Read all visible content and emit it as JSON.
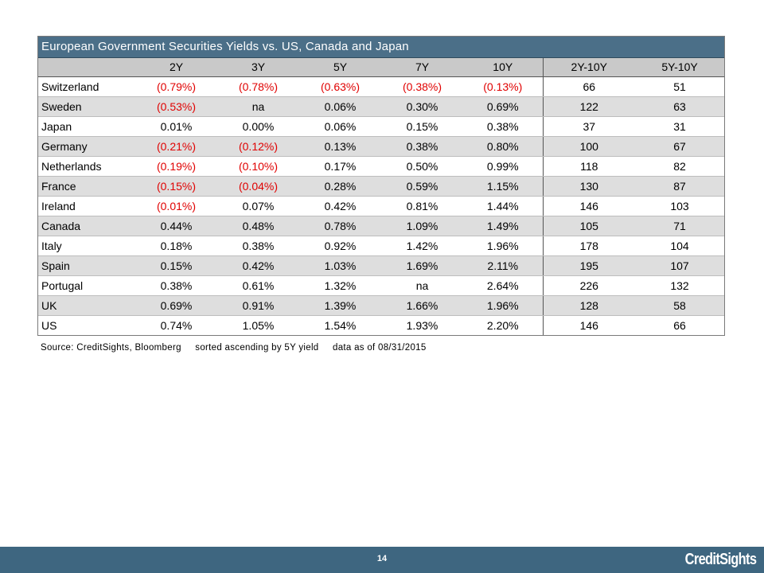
{
  "table": {
    "title": "European Government Securities Yields vs. US, Canada and Japan",
    "columns": [
      "",
      "2Y",
      "3Y",
      "5Y",
      "7Y",
      "10Y",
      "2Y-10Y",
      "5Y-10Y"
    ],
    "rows": [
      {
        "country": "Switzerland",
        "values": [
          "(0.79%)",
          "(0.78%)",
          "(0.63%)",
          "(0.38%)",
          "(0.13%)",
          "66",
          "51"
        ]
      },
      {
        "country": "Sweden",
        "values": [
          "(0.53%)",
          "na",
          "0.06%",
          "0.30%",
          "0.69%",
          "122",
          "63"
        ]
      },
      {
        "country": "Japan",
        "values": [
          "0.01%",
          "0.00%",
          "0.06%",
          "0.15%",
          "0.38%",
          "37",
          "31"
        ]
      },
      {
        "country": "Germany",
        "values": [
          "(0.21%)",
          "(0.12%)",
          "0.13%",
          "0.38%",
          "0.80%",
          "100",
          "67"
        ]
      },
      {
        "country": "Netherlands",
        "values": [
          "(0.19%)",
          "(0.10%)",
          "0.17%",
          "0.50%",
          "0.99%",
          "118",
          "82"
        ]
      },
      {
        "country": "France",
        "values": [
          "(0.15%)",
          "(0.04%)",
          "0.28%",
          "0.59%",
          "1.15%",
          "130",
          "87"
        ]
      },
      {
        "country": "Ireland",
        "values": [
          "(0.01%)",
          "0.07%",
          "0.42%",
          "0.81%",
          "1.44%",
          "146",
          "103"
        ]
      },
      {
        "country": "Canada",
        "values": [
          "0.44%",
          "0.48%",
          "0.78%",
          "1.09%",
          "1.49%",
          "105",
          "71"
        ]
      },
      {
        "country": "Italy",
        "values": [
          "0.18%",
          "0.38%",
          "0.92%",
          "1.42%",
          "1.96%",
          "178",
          "104"
        ]
      },
      {
        "country": "Spain",
        "values": [
          "0.15%",
          "0.42%",
          "1.03%",
          "1.69%",
          "2.11%",
          "195",
          "107"
        ]
      },
      {
        "country": "Portugal",
        "values": [
          "0.38%",
          "0.61%",
          "1.32%",
          "na",
          "2.64%",
          "226",
          "132"
        ]
      },
      {
        "country": "UK",
        "values": [
          "0.69%",
          "0.91%",
          "1.39%",
          "1.66%",
          "1.96%",
          "128",
          "58"
        ]
      },
      {
        "country": "US",
        "values": [
          "0.74%",
          "1.05%",
          "1.54%",
          "1.93%",
          "2.20%",
          "146",
          "66"
        ]
      }
    ]
  },
  "source": {
    "source_text": "Source: CreditSights, Bloomberg",
    "sort_text": "sorted ascending by 5Y yield",
    "date_text": "data as of 08/31/2015"
  },
  "footer": {
    "page_number": "14",
    "brand": "CreditSights"
  },
  "colors": {
    "title_bar": "#4b6f88",
    "header_bg": "#c9c9c9",
    "shaded_row": "#dedede",
    "negative_text": "#e00000",
    "footer_bar": "#3e6680"
  },
  "chart_data": {
    "type": "table",
    "title": "European Government Securities Yields vs. US, Canada and Japan",
    "columns": [
      "2Y",
      "3Y",
      "5Y",
      "7Y",
      "10Y",
      "2Y-10Y",
      "5Y-10Y"
    ],
    "row_labels": [
      "Switzerland",
      "Sweden",
      "Japan",
      "Germany",
      "Netherlands",
      "France",
      "Ireland",
      "Canada",
      "Italy",
      "Spain",
      "Portugal",
      "UK",
      "US"
    ],
    "values": [
      [
        -0.79,
        -0.78,
        -0.63,
        -0.38,
        -0.13,
        66,
        51
      ],
      [
        -0.53,
        null,
        0.06,
        0.3,
        0.69,
        122,
        63
      ],
      [
        0.01,
        0.0,
        0.06,
        0.15,
        0.38,
        37,
        31
      ],
      [
        -0.21,
        -0.12,
        0.13,
        0.38,
        0.8,
        100,
        67
      ],
      [
        -0.19,
        -0.1,
        0.17,
        0.5,
        0.99,
        118,
        82
      ],
      [
        -0.15,
        -0.04,
        0.28,
        0.59,
        1.15,
        130,
        87
      ],
      [
        -0.01,
        0.07,
        0.42,
        0.81,
        1.44,
        146,
        103
      ],
      [
        0.44,
        0.48,
        0.78,
        1.09,
        1.49,
        105,
        71
      ],
      [
        0.18,
        0.38,
        0.92,
        1.42,
        1.96,
        178,
        104
      ],
      [
        0.15,
        0.42,
        1.03,
        1.69,
        2.11,
        195,
        107
      ],
      [
        0.38,
        0.61,
        1.32,
        null,
        2.64,
        226,
        132
      ],
      [
        0.69,
        0.91,
        1.39,
        1.66,
        1.96,
        128,
        58
      ],
      [
        0.74,
        1.05,
        1.54,
        1.93,
        2.2,
        146,
        66
      ]
    ]
  }
}
